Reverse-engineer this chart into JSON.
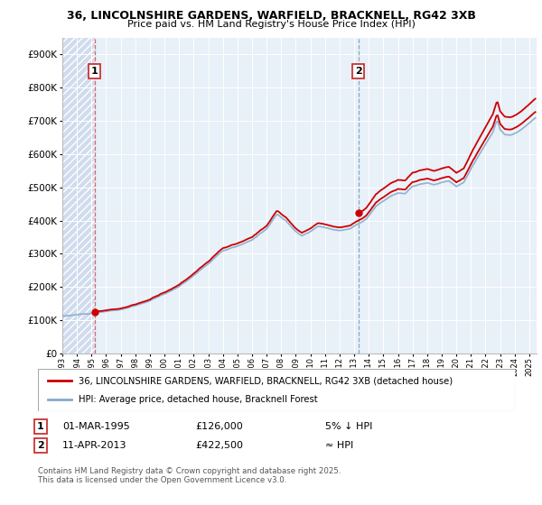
{
  "title_line1": "36, LINCOLNSHIRE GARDENS, WARFIELD, BRACKNELL, RG42 3XB",
  "title_line2": "Price paid vs. HM Land Registry's House Price Index (HPI)",
  "sale1_date": "01-MAR-1995",
  "sale1_price": 126000,
  "sale1_label": "5% ↓ HPI",
  "sale2_date": "11-APR-2013",
  "sale2_price": 422500,
  "sale2_label": "≈ HPI",
  "legend_line1": "36, LINCOLNSHIRE GARDENS, WARFIELD, BRACKNELL, RG42 3XB (detached house)",
  "legend_line2": "HPI: Average price, detached house, Bracknell Forest",
  "footnote": "Contains HM Land Registry data © Crown copyright and database right 2025.\nThis data is licensed under the Open Government Licence v3.0.",
  "line_color_red": "#cc0000",
  "line_color_blue": "#88aacc",
  "ylim": [
    0,
    950000
  ],
  "ylabel_ticks": [
    0,
    100000,
    200000,
    300000,
    400000,
    500000,
    600000,
    700000,
    800000,
    900000
  ],
  "sale1_year": 1995.2083,
  "sale2_year": 2013.2917,
  "xmin": 1993.0,
  "xmax": 2025.5
}
